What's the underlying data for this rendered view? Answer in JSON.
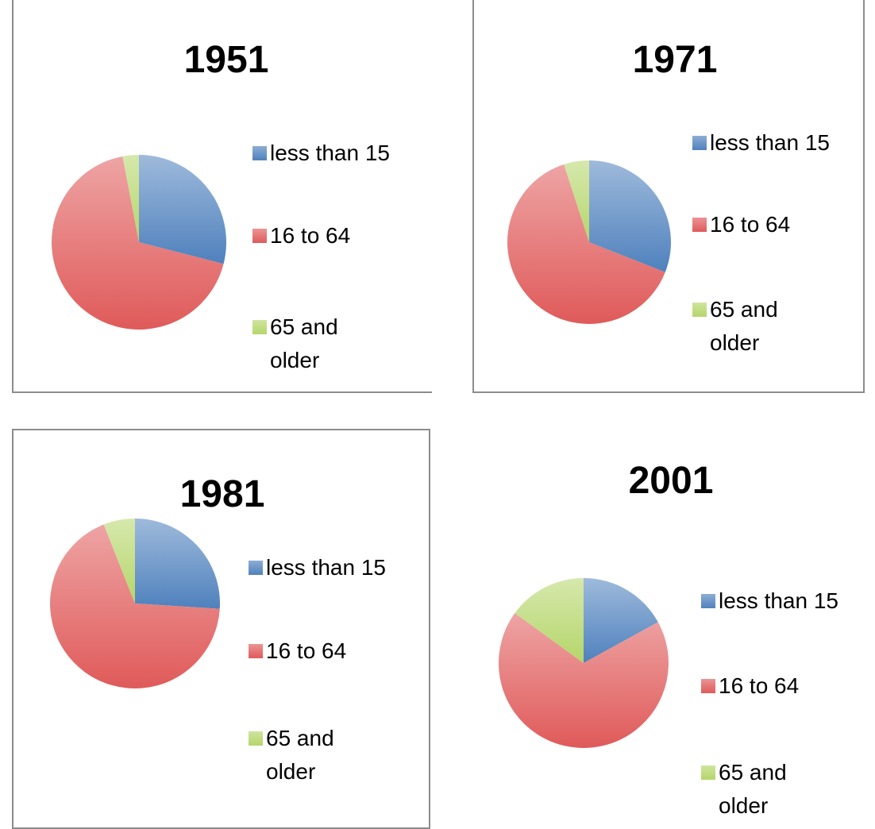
{
  "chart_data": [
    {
      "type": "pie",
      "title": "1951",
      "categories": [
        "less than 15",
        "16 to 64",
        "65 and older"
      ],
      "values": [
        29,
        68,
        3
      ],
      "colors": [
        "#4f81bd",
        "#e05a5a",
        "#b5d66a"
      ]
    },
    {
      "type": "pie",
      "title": "1971",
      "categories": [
        "less than 15",
        "16 to 64",
        "65 and older"
      ],
      "values": [
        31,
        64,
        5
      ],
      "colors": [
        "#4f81bd",
        "#e05a5a",
        "#b5d66a"
      ]
    },
    {
      "type": "pie",
      "title": "1981",
      "categories": [
        "less than 15",
        "16 to 64",
        "65 and older"
      ],
      "values": [
        26,
        68,
        6
      ],
      "colors": [
        "#4f81bd",
        "#e05a5a",
        "#b5d66a"
      ]
    },
    {
      "type": "pie",
      "title": "2001",
      "categories": [
        "less than 15",
        "16 to 64",
        "65 and older"
      ],
      "values": [
        17,
        68,
        15
      ],
      "colors": [
        "#4f81bd",
        "#e05a5a",
        "#b5d66a"
      ]
    }
  ]
}
